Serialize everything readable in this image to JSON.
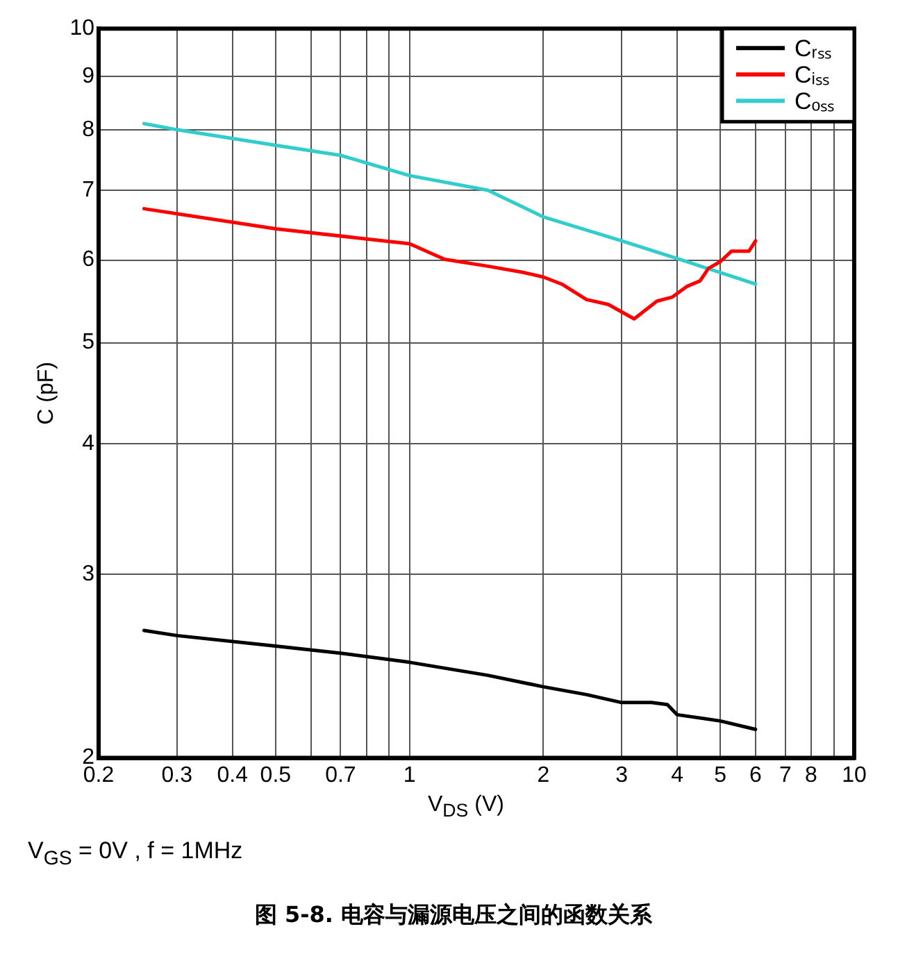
{
  "chart_data": {
    "type": "line",
    "title": "图 5-8. 电容与漏源电压之间的函数关系",
    "xlabel": "V$_{DS}$ (V)",
    "ylabel": "C (pF)",
    "annotations": [
      "V$_{GS}$ = 0V , f = 1MHz"
    ],
    "log": "xy",
    "grid": true,
    "legend": "top right",
    "marker": "none",
    "line_style": "solid",
    "xlim": [
      0.2,
      10
    ],
    "ylim": [
      2,
      10
    ],
    "xticks": [
      0.2,
      0.3,
      0.4,
      0.5,
      {
        "value": 0.6,
        "label": null
      },
      0.7,
      {
        "value": 0.8,
        "label": null
      },
      {
        "value": 0.9,
        "label": null
      },
      1,
      2,
      3,
      4,
      5,
      6,
      7,
      8,
      {
        "value": 9,
        "label": null
      },
      10
    ],
    "yticks": [
      2,
      3,
      4,
      5,
      6,
      7,
      8,
      9,
      10
    ],
    "series": [
      {
        "name": "Cᵣₛₛ",
        "color": "#000000",
        "x": [
          0.253,
          0.3,
          0.5,
          0.7,
          1,
          1.5,
          2,
          2.5,
          3,
          3.5,
          3.8,
          4,
          5,
          6
        ],
        "values": [
          2.65,
          2.62,
          2.56,
          2.52,
          2.47,
          2.4,
          2.34,
          2.3,
          2.26,
          2.26,
          2.25,
          2.2,
          2.17,
          2.13
        ]
      },
      {
        "name": "Cᵢₛₛ",
        "color": "#ff0000",
        "x": [
          0.253,
          0.5,
          1,
          1.2,
          1.5,
          1.8,
          2,
          2.2,
          2.5,
          2.8,
          3.2,
          3.6,
          3.9,
          4.2,
          4.5,
          4.7,
          5,
          5.3,
          5.8,
          6
        ],
        "values": [
          6.72,
          6.43,
          6.22,
          6.01,
          5.92,
          5.84,
          5.78,
          5.69,
          5.5,
          5.44,
          5.27,
          5.48,
          5.53,
          5.66,
          5.73,
          5.89,
          5.98,
          6.12,
          6.12,
          6.26
        ]
      },
      {
        "name": "Cₒₛₛ",
        "color": "#33cccc",
        "x": [
          0.253,
          0.3,
          0.5,
          0.7,
          1,
          1.5,
          2,
          3,
          4,
          6
        ],
        "values": [
          8.11,
          8.0,
          7.73,
          7.56,
          7.23,
          7.0,
          6.6,
          6.26,
          6.02,
          5.69
        ]
      }
    ]
  }
}
